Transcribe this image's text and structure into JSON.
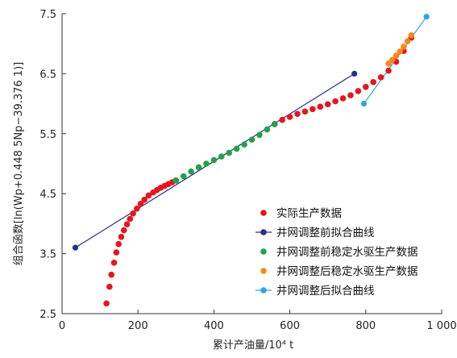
{
  "chart_data": {
    "type": "scatter",
    "xlabel": "累计产油量/10⁴ t",
    "ylabel": "组合函数[ln(Wp+0.448 5Np−39.376 1)]",
    "xlim": [
      0,
      1000
    ],
    "ylim": [
      2.5,
      7.5
    ],
    "x_ticks": [
      "0",
      "200",
      "400",
      "600",
      "800",
      "1 000"
    ],
    "y_ticks": [
      "2.5",
      "3.5",
      "4.5",
      "5.5",
      "6.5",
      "7.5"
    ],
    "grid": false,
    "legend_position": "lower-right",
    "series": [
      {
        "name": "实际生产数据",
        "kind": "points",
        "color": "#e4161f",
        "x": [
          117,
          125,
          130,
          137,
          143,
          149,
          156,
          163,
          171,
          179,
          187,
          197,
          207,
          217,
          228,
          240,
          250,
          260,
          270,
          280,
          290,
          300,
          560,
          580,
          600,
          620,
          640,
          660,
          680,
          700,
          720,
          740,
          760,
          780,
          800,
          820,
          840,
          860,
          880,
          900,
          920
        ],
        "y": [
          2.67,
          2.95,
          3.15,
          3.35,
          3.52,
          3.66,
          3.78,
          3.89,
          3.99,
          4.08,
          4.17,
          4.25,
          4.33,
          4.4,
          4.47,
          4.52,
          4.56,
          4.6,
          4.63,
          4.66,
          4.69,
          4.72,
          5.66,
          5.73,
          5.78,
          5.83,
          5.87,
          5.91,
          5.95,
          5.99,
          6.04,
          6.09,
          6.14,
          6.21,
          6.28,
          6.36,
          6.44,
          6.55,
          6.7,
          6.88,
          7.1
        ]
      },
      {
        "name": "井网调整前拟合曲线",
        "kind": "line",
        "color": "#24308a",
        "x": [
          35,
          770
        ],
        "y": [
          3.6,
          6.5
        ]
      },
      {
        "name": "井网调整前稳定水驱生产数据",
        "kind": "points",
        "color": "#26a048",
        "x": [
          300,
          320,
          340,
          360,
          380,
          400,
          420,
          440,
          460,
          480,
          500,
          520,
          540,
          560
        ],
        "y": [
          4.72,
          4.79,
          4.87,
          4.94,
          5.0,
          5.06,
          5.12,
          5.18,
          5.25,
          5.32,
          5.4,
          5.48,
          5.57,
          5.66
        ]
      },
      {
        "name": "井网调整后稳定水驱生产数据",
        "kind": "points",
        "color": "#f28a1c",
        "x": [
          860,
          870,
          880,
          890,
          900,
          910,
          920
        ],
        "y": [
          6.67,
          6.73,
          6.8,
          6.87,
          6.95,
          7.04,
          7.14
        ]
      },
      {
        "name": "井网调整后拟合曲线",
        "kind": "line",
        "color": "#2fa6dc",
        "x": [
          795,
          960
        ],
        "y": [
          6.0,
          7.45
        ]
      }
    ]
  }
}
